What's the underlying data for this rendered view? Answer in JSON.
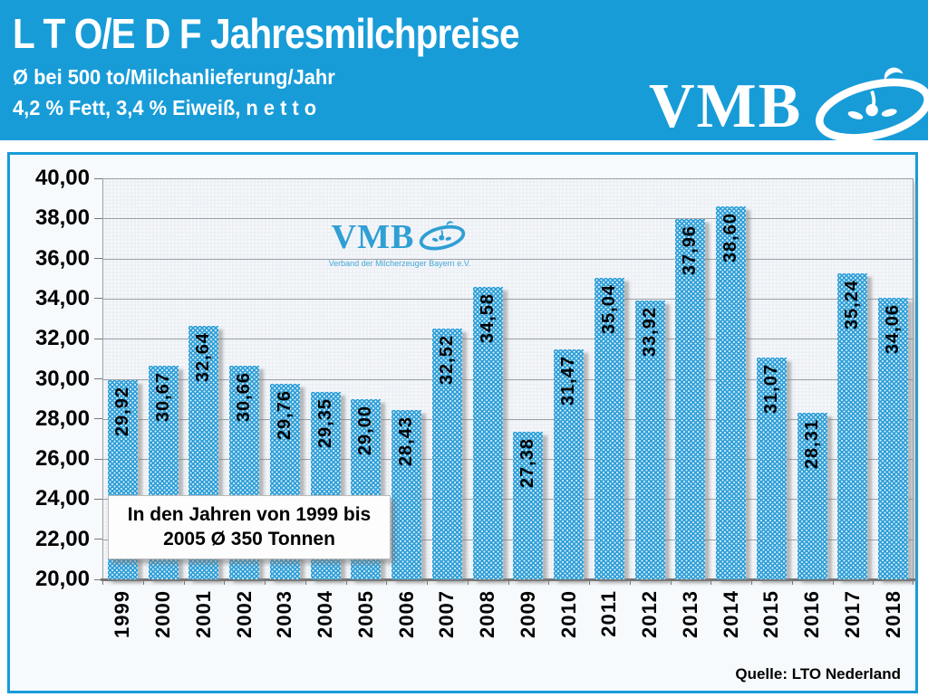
{
  "header": {
    "title": "L T O/E D F Jahresmilchpreise",
    "subtitle1": "Ø bei 500 to/Milchanlieferung/Jahr",
    "subtitle2": "4,2 % Fett, 3,4 % Eiweiß, n e t t o",
    "logo_text": "VMB"
  },
  "watermark": {
    "logo_text": "VMB",
    "subtext": "Verband der Milcherzeuger Bayern e.V."
  },
  "annotation": {
    "line1": "In den Jahren von 1999 bis",
    "line2": "2005 Ø 350 Tonnen"
  },
  "source": "Quelle: LTO Nederland",
  "colors": {
    "header_bg": "#189cd8",
    "panel_border": "#189cd8",
    "bar_color": "#2f9fd8",
    "plot_bg": "#edf1f6",
    "grid_color": "#9aa0a5",
    "label_color": "#000000",
    "watermark_color": "#2f9fd4"
  },
  "chart_data": {
    "type": "bar",
    "title": "L T O/E D F Jahresmilchpreise",
    "xlabel": "",
    "ylabel": "",
    "ylim": [
      20,
      40
    ],
    "y_step": 2,
    "grid": true,
    "legend": "none",
    "categories": [
      "1999",
      "2000",
      "2001",
      "2002",
      "2003",
      "2004",
      "2005",
      "2006",
      "2007",
      "2008",
      "2009",
      "2010",
      "2011",
      "2012",
      "2013",
      "2014",
      "2015",
      "2016",
      "2017",
      "2018"
    ],
    "values": [
      29.92,
      30.67,
      32.64,
      30.66,
      29.76,
      29.35,
      29.0,
      28.43,
      32.52,
      34.58,
      27.38,
      31.47,
      35.04,
      33.92,
      37.96,
      38.6,
      31.07,
      28.31,
      35.24,
      34.06
    ],
    "value_labels": [
      "29,92",
      "30,67",
      "32,64",
      "30,66",
      "29,76",
      "29,35",
      "29,00",
      "28,43",
      "32,52",
      "34,58",
      "27,38",
      "31,47",
      "35,04",
      "33,92",
      "37,96",
      "38,60",
      "31,07",
      "28,31",
      "35,24",
      "34,06"
    ],
    "y_tick_labels": [
      "40,00",
      "38,00",
      "36,00",
      "34,00",
      "32,00",
      "30,00",
      "28,00",
      "26,00",
      "24,00",
      "22,00",
      "20,00"
    ]
  }
}
